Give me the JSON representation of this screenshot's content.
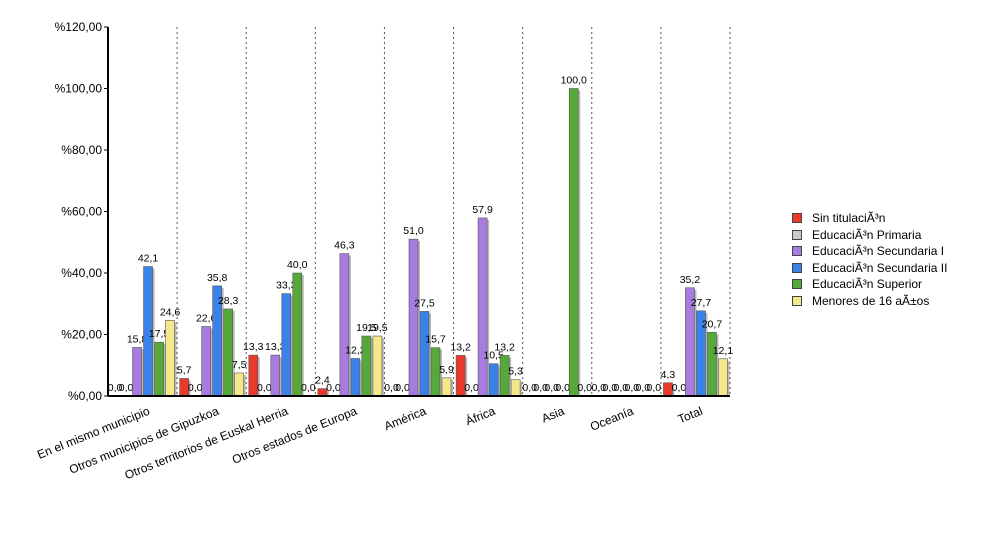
{
  "chart_data": {
    "type": "bar",
    "title": "",
    "xlabel": "",
    "ylabel": "",
    "ylim": [
      0,
      120
    ],
    "y_ticks": [
      "%0,00",
      "%20,00",
      "%40,00",
      "%60,00",
      "%80,00",
      "%100,00",
      "%120,00"
    ],
    "grid": "vertical dotted",
    "legend_position": "right",
    "categories": [
      "En el mismo municipio",
      "Otros municipios de Gipuzkoa",
      "Otros territorios de Euskal Herria",
      "Otros estados de Europa",
      "América",
      "África",
      "Asia",
      "Oceanía",
      "Total"
    ],
    "series": [
      {
        "name": "Sin titulaciÃ³n",
        "color": "#e8392a",
        "values": [
          0.0,
          5.7,
          13.3,
          2.4,
          0.0,
          13.2,
          0.0,
          0.0,
          4.3
        ],
        "labels": [
          "0,0",
          "5,7",
          "13,3",
          "2,4",
          "0,0",
          "13,2",
          "0,0",
          "0,0",
          "4,3"
        ]
      },
      {
        "name": "EducaciÃ³n Primaria",
        "color": "#c9c9c9",
        "values": [
          0.0,
          0.0,
          0.0,
          0.0,
          0.0,
          0.0,
          0.0,
          0.0,
          0.0
        ],
        "labels": [
          "0,0",
          "0,0",
          "0,0",
          "0,0",
          "0,0",
          "0,0",
          "0,0",
          "0,0",
          "0,0"
        ]
      },
      {
        "name": "EducaciÃ³n Secundaria I",
        "color": "#a77be0",
        "values": [
          15.8,
          22.6,
          13.3,
          46.3,
          51.0,
          57.9,
          0.0,
          0.0,
          35.2
        ],
        "labels": [
          "15,8",
          "22,6",
          "13,3",
          "46,3",
          "51,0",
          "57,9",
          "0,0",
          "0,0",
          "35,2"
        ]
      },
      {
        "name": "EducaciÃ³n Secundaria II",
        "color": "#3b82e8",
        "values": [
          42.1,
          35.8,
          33.3,
          12.2,
          27.5,
          10.5,
          0.0,
          0.0,
          27.7
        ],
        "labels": [
          "42,1",
          "35,8",
          "33,3",
          "12,2",
          "27,5",
          "10,5",
          "0,0",
          "0,0",
          "27,7"
        ]
      },
      {
        "name": "EducaciÃ³n Superior",
        "color": "#56a83a",
        "values": [
          17.5,
          28.3,
          40.0,
          19.5,
          15.7,
          13.2,
          100.0,
          0.0,
          20.7
        ],
        "labels": [
          "17,5",
          "28,3",
          "40,0",
          "19,5",
          "15,7",
          "13,2",
          "100,0",
          "0,0",
          "20,7"
        ]
      },
      {
        "name": "Menores de 16 aÃ±os",
        "color": "#f4e88a",
        "values": [
          24.6,
          7.5,
          0.0,
          19.5,
          5.9,
          5.3,
          0.0,
          0.0,
          12.1
        ],
        "labels": [
          "24,6",
          "7,5",
          "0,0",
          "19,5",
          "5,9",
          "5,3",
          "0,0",
          "0,0",
          "12,1"
        ]
      }
    ]
  }
}
